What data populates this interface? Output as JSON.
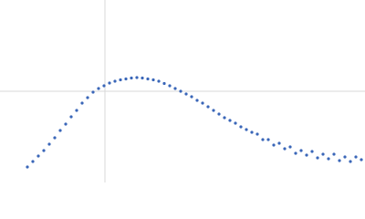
{
  "chart_data": {
    "type": "scatter",
    "x": [
      0.3,
      0.36,
      0.42,
      0.48,
      0.54,
      0.6,
      0.66,
      0.72,
      0.78,
      0.84,
      0.9,
      0.96,
      1.02,
      1.08,
      1.14,
      1.2,
      1.26,
      1.32,
      1.38,
      1.44,
      1.5,
      1.56,
      1.62,
      1.68,
      1.74,
      1.8,
      1.86,
      1.92,
      1.98,
      2.04,
      2.1,
      2.16,
      2.22,
      2.28,
      2.34,
      2.4,
      2.46,
      2.52,
      2.58,
      2.64,
      2.7,
      2.76,
      2.82,
      2.88,
      2.94,
      3.0,
      3.06,
      3.12,
      3.18,
      3.24,
      3.3,
      3.36,
      3.42,
      3.48,
      3.54,
      3.6,
      3.66,
      3.72,
      3.78,
      3.84,
      3.9,
      3.96
    ],
    "values": [
      0.17,
      0.23,
      0.29,
      0.35,
      0.42,
      0.49,
      0.57,
      0.64,
      0.72,
      0.79,
      0.87,
      0.93,
      0.99,
      1.03,
      1.06,
      1.09,
      1.11,
      1.125,
      1.135,
      1.145,
      1.15,
      1.145,
      1.135,
      1.125,
      1.11,
      1.085,
      1.06,
      1.03,
      1.0,
      0.97,
      0.94,
      0.9,
      0.87,
      0.83,
      0.79,
      0.75,
      0.71,
      0.68,
      0.65,
      0.61,
      0.58,
      0.55,
      0.53,
      0.47,
      0.47,
      0.41,
      0.43,
      0.37,
      0.39,
      0.32,
      0.35,
      0.3,
      0.34,
      0.27,
      0.31,
      0.26,
      0.31,
      0.24,
      0.28,
      0.23,
      0.28,
      0.25
    ],
    "color": "#3a66b8",
    "xlim": [
      0,
      4
    ],
    "ylim": [
      0,
      2
    ],
    "xticks": [
      1.15
    ],
    "yticks": [
      1.0
    ],
    "grid": true
  }
}
